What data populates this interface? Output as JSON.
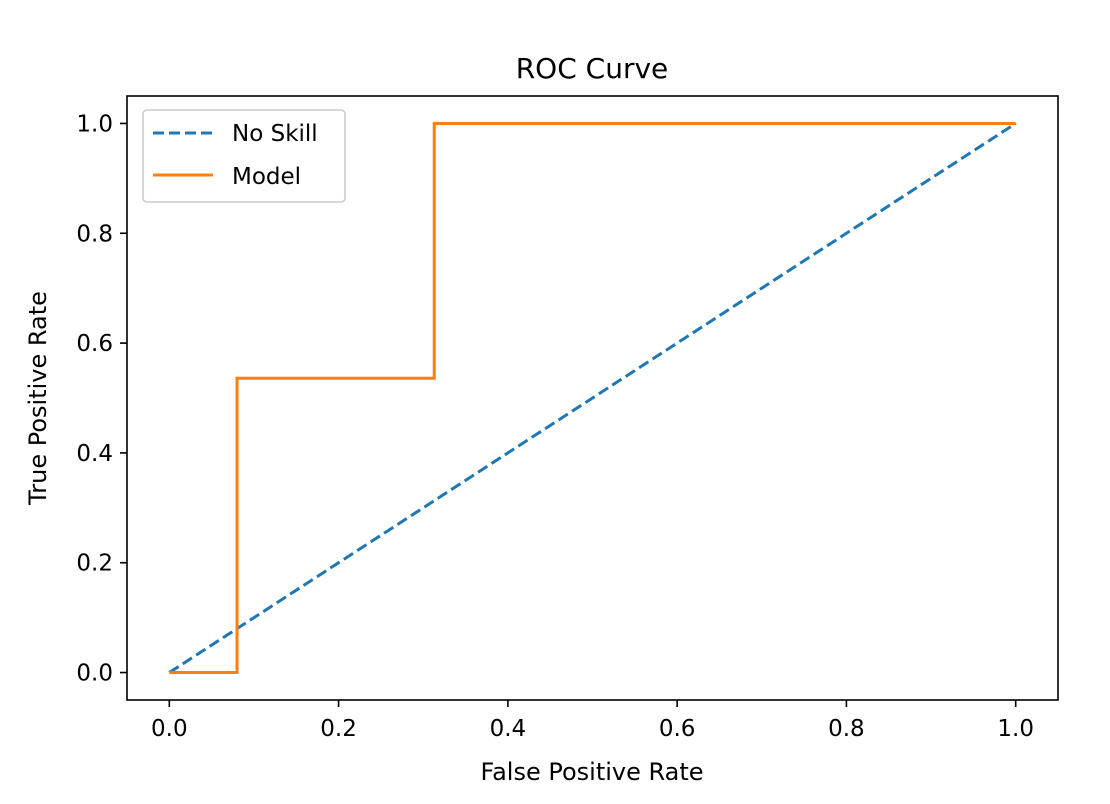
{
  "chart_data": {
    "type": "line",
    "title": "ROC Curve",
    "xlabel": "False Positive Rate",
    "ylabel": "True Positive Rate",
    "xlim": [
      -0.05,
      1.05
    ],
    "ylim": [
      -0.05,
      1.05
    ],
    "x_ticks": [
      0.0,
      0.2,
      0.4,
      0.6,
      0.8,
      1.0
    ],
    "y_ticks": [
      0.0,
      0.2,
      0.4,
      0.6,
      0.8,
      1.0
    ],
    "x_tick_labels": [
      "0.0",
      "0.2",
      "0.4",
      "0.6",
      "0.8",
      "1.0"
    ],
    "y_tick_labels": [
      "0.0",
      "0.2",
      "0.4",
      "0.6",
      "0.8",
      "1.0"
    ],
    "grid": false,
    "legend": {
      "placement": "top-left",
      "entries": [
        "No Skill",
        "Model"
      ]
    },
    "series": [
      {
        "name": "No Skill",
        "style": "dashed",
        "color": "#1f77b4",
        "x": [
          0.0,
          1.0
        ],
        "y": [
          0.0,
          1.0
        ]
      },
      {
        "name": "Model",
        "style": "solid",
        "color": "#ff7f0e",
        "x": [
          0.0,
          0.08,
          0.08,
          0.313,
          0.313,
          1.0
        ],
        "y": [
          0.0,
          0.0,
          0.536,
          0.536,
          1.0,
          1.0
        ]
      }
    ]
  }
}
